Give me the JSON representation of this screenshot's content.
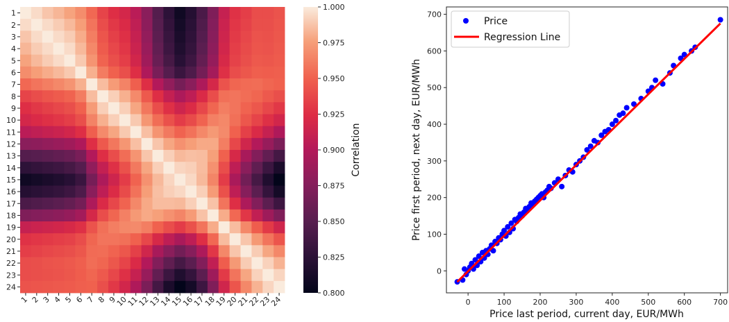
{
  "chart_data": [
    {
      "type": "heatmap",
      "x_labels": [
        "1",
        "2",
        "3",
        "4",
        "5",
        "6",
        "7",
        "8",
        "9",
        "10",
        "11",
        "12",
        "13",
        "14",
        "15",
        "16",
        "17",
        "18",
        "19",
        "20",
        "21",
        "22",
        "23",
        "24"
      ],
      "y_labels": [
        "1",
        "2",
        "3",
        "4",
        "5",
        "6",
        "7",
        "8",
        "9",
        "10",
        "11",
        "12",
        "13",
        "14",
        "15",
        "16",
        "17",
        "18",
        "19",
        "20",
        "21",
        "22",
        "23",
        "24"
      ],
      "colorbar": {
        "label": "Correlation",
        "ticks": [
          "1.000",
          "0.975",
          "0.950",
          "0.925",
          "0.900",
          "0.875",
          "0.850",
          "0.825",
          "0.800"
        ],
        "range": [
          0.8,
          1.0
        ]
      },
      "values": [
        [
          1.0,
          0.995,
          0.988,
          0.983,
          0.977,
          0.968,
          0.953,
          0.936,
          0.925,
          0.918,
          0.904,
          0.878,
          0.848,
          0.826,
          0.808,
          0.821,
          0.843,
          0.872,
          0.91,
          0.927,
          0.933,
          0.94,
          0.94,
          0.943
        ],
        [
          0.995,
          1.0,
          0.995,
          0.99,
          0.984,
          0.975,
          0.958,
          0.94,
          0.93,
          0.922,
          0.907,
          0.88,
          0.85,
          0.829,
          0.811,
          0.824,
          0.846,
          0.875,
          0.913,
          0.929,
          0.935,
          0.941,
          0.941,
          0.944
        ],
        [
          0.988,
          0.995,
          1.0,
          0.995,
          0.99,
          0.98,
          0.962,
          0.944,
          0.934,
          0.926,
          0.91,
          0.883,
          0.853,
          0.832,
          0.815,
          0.827,
          0.849,
          0.877,
          0.915,
          0.931,
          0.937,
          0.943,
          0.942,
          0.945
        ],
        [
          0.983,
          0.99,
          0.995,
          1.0,
          0.995,
          0.984,
          0.966,
          0.947,
          0.937,
          0.929,
          0.913,
          0.886,
          0.856,
          0.835,
          0.818,
          0.83,
          0.852,
          0.88,
          0.917,
          0.933,
          0.939,
          0.944,
          0.943,
          0.946
        ],
        [
          0.977,
          0.984,
          0.99,
          0.995,
          1.0,
          0.989,
          0.971,
          0.951,
          0.941,
          0.933,
          0.917,
          0.89,
          0.86,
          0.84,
          0.823,
          0.835,
          0.857,
          0.884,
          0.92,
          0.935,
          0.941,
          0.946,
          0.945,
          0.947
        ],
        [
          0.968,
          0.975,
          0.98,
          0.984,
          0.989,
          1.0,
          0.981,
          0.961,
          0.95,
          0.941,
          0.925,
          0.898,
          0.869,
          0.849,
          0.833,
          0.845,
          0.866,
          0.892,
          0.926,
          0.94,
          0.945,
          0.949,
          0.948,
          0.949
        ],
        [
          0.953,
          0.958,
          0.962,
          0.966,
          0.971,
          0.981,
          1.0,
          0.985,
          0.974,
          0.964,
          0.949,
          0.925,
          0.9,
          0.882,
          0.867,
          0.878,
          0.897,
          0.919,
          0.943,
          0.952,
          0.954,
          0.955,
          0.952,
          0.95
        ],
        [
          0.936,
          0.94,
          0.944,
          0.947,
          0.951,
          0.961,
          0.985,
          1.0,
          0.991,
          0.981,
          0.967,
          0.946,
          0.925,
          0.909,
          0.897,
          0.906,
          0.922,
          0.94,
          0.956,
          0.958,
          0.955,
          0.952,
          0.946,
          0.941
        ],
        [
          0.925,
          0.93,
          0.934,
          0.937,
          0.941,
          0.95,
          0.974,
          0.991,
          1.0,
          0.991,
          0.978,
          0.959,
          0.94,
          0.926,
          0.915,
          0.923,
          0.937,
          0.952,
          0.962,
          0.958,
          0.951,
          0.945,
          0.937,
          0.93
        ],
        [
          0.918,
          0.922,
          0.926,
          0.929,
          0.933,
          0.941,
          0.964,
          0.981,
          0.991,
          1.0,
          0.989,
          0.972,
          0.955,
          0.942,
          0.932,
          0.939,
          0.951,
          0.963,
          0.966,
          0.956,
          0.945,
          0.936,
          0.926,
          0.917
        ],
        [
          0.904,
          0.907,
          0.91,
          0.913,
          0.917,
          0.925,
          0.949,
          0.967,
          0.978,
          0.989,
          1.0,
          0.986,
          0.971,
          0.96,
          0.951,
          0.957,
          0.966,
          0.973,
          0.967,
          0.95,
          0.934,
          0.922,
          0.91,
          0.898
        ],
        [
          0.878,
          0.88,
          0.883,
          0.886,
          0.89,
          0.898,
          0.925,
          0.946,
          0.959,
          0.972,
          0.986,
          1.0,
          0.988,
          0.978,
          0.97,
          0.975,
          0.979,
          0.979,
          0.962,
          0.937,
          0.916,
          0.9,
          0.885,
          0.87
        ],
        [
          0.848,
          0.85,
          0.853,
          0.856,
          0.86,
          0.869,
          0.9,
          0.925,
          0.94,
          0.955,
          0.971,
          0.988,
          1.0,
          0.991,
          0.984,
          0.986,
          0.985,
          0.976,
          0.95,
          0.92,
          0.894,
          0.874,
          0.856,
          0.839
        ],
        [
          0.826,
          0.829,
          0.832,
          0.835,
          0.84,
          0.849,
          0.882,
          0.909,
          0.926,
          0.942,
          0.96,
          0.978,
          0.991,
          1.0,
          0.993,
          0.991,
          0.985,
          0.97,
          0.94,
          0.906,
          0.878,
          0.855,
          0.834,
          0.815
        ],
        [
          0.808,
          0.811,
          0.815,
          0.818,
          0.823,
          0.833,
          0.867,
          0.897,
          0.915,
          0.932,
          0.951,
          0.97,
          0.984,
          0.993,
          1.0,
          0.994,
          0.984,
          0.965,
          0.932,
          0.895,
          0.865,
          0.84,
          0.818,
          0.8
        ],
        [
          0.821,
          0.824,
          0.827,
          0.83,
          0.835,
          0.845,
          0.878,
          0.906,
          0.923,
          0.939,
          0.957,
          0.975,
          0.986,
          0.991,
          0.994,
          1.0,
          0.991,
          0.974,
          0.942,
          0.906,
          0.876,
          0.852,
          0.83,
          0.811
        ],
        [
          0.843,
          0.846,
          0.849,
          0.852,
          0.857,
          0.866,
          0.897,
          0.922,
          0.937,
          0.951,
          0.966,
          0.979,
          0.985,
          0.985,
          0.984,
          0.991,
          1.0,
          0.987,
          0.958,
          0.925,
          0.897,
          0.874,
          0.853,
          0.835
        ],
        [
          0.872,
          0.875,
          0.877,
          0.88,
          0.884,
          0.892,
          0.919,
          0.94,
          0.952,
          0.963,
          0.973,
          0.979,
          0.976,
          0.97,
          0.965,
          0.974,
          0.987,
          1.0,
          0.98,
          0.953,
          0.929,
          0.908,
          0.889,
          0.872
        ],
        [
          0.91,
          0.913,
          0.915,
          0.917,
          0.92,
          0.926,
          0.943,
          0.956,
          0.962,
          0.966,
          0.967,
          0.962,
          0.95,
          0.94,
          0.932,
          0.942,
          0.958,
          0.98,
          1.0,
          0.985,
          0.966,
          0.948,
          0.931,
          0.916
        ],
        [
          0.927,
          0.929,
          0.931,
          0.933,
          0.935,
          0.94,
          0.952,
          0.958,
          0.958,
          0.956,
          0.95,
          0.937,
          0.92,
          0.906,
          0.895,
          0.906,
          0.925,
          0.953,
          0.985,
          1.0,
          0.988,
          0.973,
          0.958,
          0.944
        ],
        [
          0.933,
          0.935,
          0.937,
          0.939,
          0.941,
          0.945,
          0.954,
          0.955,
          0.951,
          0.945,
          0.934,
          0.916,
          0.894,
          0.878,
          0.865,
          0.876,
          0.897,
          0.929,
          0.966,
          0.988,
          1.0,
          0.99,
          0.978,
          0.966
        ],
        [
          0.94,
          0.941,
          0.943,
          0.944,
          0.946,
          0.949,
          0.955,
          0.952,
          0.945,
          0.936,
          0.922,
          0.9,
          0.874,
          0.855,
          0.84,
          0.852,
          0.874,
          0.908,
          0.948,
          0.973,
          0.99,
          1.0,
          0.992,
          0.982
        ],
        [
          0.94,
          0.941,
          0.942,
          0.943,
          0.945,
          0.948,
          0.952,
          0.946,
          0.937,
          0.926,
          0.91,
          0.885,
          0.856,
          0.834,
          0.818,
          0.83,
          0.853,
          0.889,
          0.931,
          0.958,
          0.978,
          0.992,
          1.0,
          0.993
        ],
        [
          0.943,
          0.944,
          0.945,
          0.946,
          0.947,
          0.949,
          0.95,
          0.941,
          0.93,
          0.917,
          0.898,
          0.87,
          0.839,
          0.815,
          0.8,
          0.811,
          0.835,
          0.872,
          0.916,
          0.944,
          0.966,
          0.982,
          0.993,
          1.0
        ]
      ]
    },
    {
      "type": "scatter",
      "xlabel": "Price last period, current day, EUR/MWh",
      "ylabel": "Price first period, next day, EUR/MWh",
      "xlim": [
        -60,
        720
      ],
      "ylim": [
        -60,
        720
      ],
      "x_ticks": [
        0,
        100,
        200,
        300,
        400,
        500,
        600,
        700
      ],
      "y_ticks": [
        0,
        100,
        200,
        300,
        400,
        500,
        600,
        700
      ],
      "grid": false,
      "legend": {
        "placement": "top-left",
        "entries": [
          "Price",
          "Regression Line"
        ]
      },
      "series": [
        {
          "name": "Price",
          "color": "#0000ff",
          "x": [
            -30,
            -15,
            -10,
            -5,
            0,
            5,
            10,
            15,
            20,
            25,
            30,
            35,
            40,
            45,
            50,
            55,
            60,
            65,
            70,
            75,
            80,
            85,
            90,
            95,
            100,
            105,
            110,
            115,
            120,
            125,
            130,
            135,
            140,
            145,
            150,
            155,
            160,
            165,
            170,
            175,
            180,
            185,
            190,
            195,
            200,
            205,
            210,
            215,
            220,
            225,
            230,
            240,
            250,
            260,
            270,
            280,
            290,
            300,
            310,
            320,
            330,
            340,
            350,
            360,
            370,
            380,
            390,
            400,
            410,
            420,
            430,
            440,
            460,
            480,
            500,
            510,
            520,
            540,
            560,
            570,
            590,
            600,
            620,
            630,
            700
          ],
          "y": [
            -30,
            -25,
            5,
            -10,
            0,
            10,
            20,
            5,
            30,
            15,
            40,
            25,
            50,
            35,
            55,
            45,
            60,
            70,
            55,
            80,
            75,
            90,
            85,
            100,
            110,
            95,
            120,
            105,
            130,
            115,
            140,
            135,
            145,
            155,
            150,
            160,
            170,
            165,
            175,
            185,
            180,
            190,
            195,
            200,
            205,
            210,
            200,
            215,
            220,
            230,
            225,
            240,
            250,
            230,
            260,
            275,
            270,
            290,
            300,
            310,
            330,
            340,
            355,
            350,
            370,
            380,
            385,
            400,
            410,
            425,
            430,
            445,
            455,
            470,
            490,
            500,
            520,
            510,
            540,
            560,
            580,
            590,
            600,
            610,
            685
          ]
        },
        {
          "name": "Regression Line",
          "color": "#ff0000",
          "type": "line",
          "x": [
            -30,
            700
          ],
          "y": [
            -30,
            675
          ]
        }
      ]
    }
  ]
}
